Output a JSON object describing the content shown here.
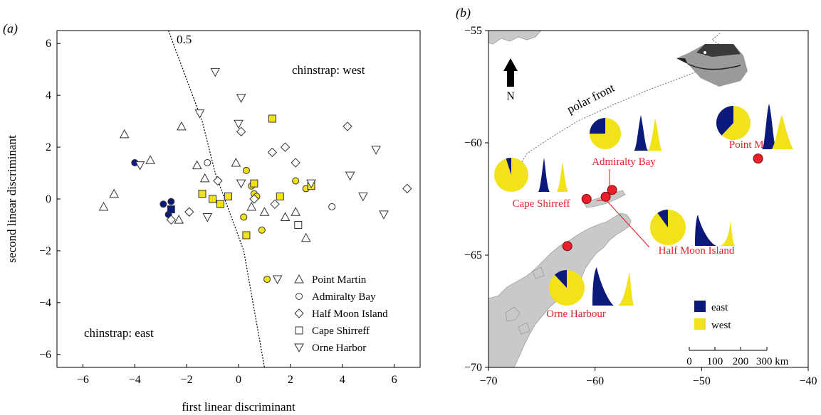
{
  "chart_data": [
    {
      "type": "scatter",
      "panel_label": "(a)",
      "xlabel": "first linear discriminant",
      "ylabel": "second linear discriminant",
      "xlim": [
        -7,
        7
      ],
      "ylim": [
        -6.5,
        6.5
      ],
      "xticks": [
        "-6",
        "-4",
        "-2",
        "0",
        "2",
        "4",
        "6"
      ],
      "yticks": [
        "-6",
        "-4",
        "-2",
        "0",
        "2",
        "4",
        "6"
      ],
      "boundary": {
        "label": "0.5",
        "points": [
          [
            -2.7,
            6.5
          ],
          [
            -1.4,
            3.0
          ],
          [
            -0.9,
            1.0
          ],
          [
            0.2,
            -2.0
          ],
          [
            1.0,
            -6.5
          ]
        ]
      },
      "annotations": {
        "west": "chinstrap: west",
        "east": "chinstrap: east"
      },
      "legend": {
        "position": "bottom-right",
        "entries": [
          {
            "label": "Point Martin",
            "marker": "triangle-up"
          },
          {
            "label": "Admiralty Bay",
            "marker": "circle"
          },
          {
            "label": "Half Moon Island",
            "marker": "diamond"
          },
          {
            "label": "Cape Shirreff",
            "marker": "square"
          },
          {
            "label": "Orne Harbor",
            "marker": "triangle-down"
          }
        ]
      },
      "colors": {
        "east": "#0b1a7a",
        "west": "#f2e21a",
        "open": "#ffffff"
      },
      "series": [
        {
          "name": "Point Martin",
          "marker": "triangle-up",
          "points": [
            {
              "x": -5.2,
              "y": -0.3,
              "c": "open"
            },
            {
              "x": -4.4,
              "y": 2.5,
              "c": "open"
            },
            {
              "x": -3.4,
              "y": 1.5,
              "c": "open"
            },
            {
              "x": -4.8,
              "y": 0.2,
              "c": "open"
            },
            {
              "x": -2.2,
              "y": 2.8,
              "c": "open"
            },
            {
              "x": -1.6,
              "y": 1.3,
              "c": "open"
            },
            {
              "x": -1.3,
              "y": 0.8,
              "c": "open"
            },
            {
              "x": -2.3,
              "y": -0.8,
              "c": "open"
            },
            {
              "x": -0.1,
              "y": 1.4,
              "c": "open"
            },
            {
              "x": 1.0,
              "y": -0.5,
              "c": "open"
            },
            {
              "x": 2.2,
              "y": -0.5,
              "c": "open"
            },
            {
              "x": 2.6,
              "y": -1.5,
              "c": "open"
            },
            {
              "x": 1.8,
              "y": -0.7,
              "c": "open"
            },
            {
              "x": 0.5,
              "y": -0.3,
              "c": "open"
            }
          ]
        },
        {
          "name": "Admiralty Bay",
          "marker": "circle",
          "points": [
            {
              "x": -4.0,
              "y": 1.4,
              "c": "east"
            },
            {
              "x": -2.9,
              "y": -0.2,
              "c": "east"
            },
            {
              "x": -2.6,
              "y": -0.1,
              "c": "east"
            },
            {
              "x": -2.7,
              "y": -0.6,
              "c": "east"
            },
            {
              "x": 0.3,
              "y": 1.1,
              "c": "west"
            },
            {
              "x": 0.6,
              "y": 0.2,
              "c": "west"
            },
            {
              "x": 0.2,
              "y": -0.7,
              "c": "west"
            },
            {
              "x": 0.9,
              "y": -1.2,
              "c": "west"
            },
            {
              "x": 0.5,
              "y": 0.5,
              "c": "west"
            },
            {
              "x": 1.1,
              "y": -3.1,
              "c": "west"
            },
            {
              "x": 2.2,
              "y": 0.7,
              "c": "west"
            },
            {
              "x": 2.6,
              "y": 0.4,
              "c": "west"
            },
            {
              "x": 0.7,
              "y": 0.1,
              "c": "west"
            },
            {
              "x": -1.2,
              "y": 1.4,
              "c": "open"
            },
            {
              "x": 3.6,
              "y": -0.3,
              "c": "open"
            }
          ]
        },
        {
          "name": "Half Moon Island",
          "marker": "diamond",
          "points": [
            {
              "x": -2.6,
              "y": -0.8,
              "c": "open"
            },
            {
              "x": -1.9,
              "y": -0.5,
              "c": "open"
            },
            {
              "x": -0.8,
              "y": 0.7,
              "c": "open"
            },
            {
              "x": 0.1,
              "y": 2.6,
              "c": "open"
            },
            {
              "x": 1.3,
              "y": 1.8,
              "c": "open"
            },
            {
              "x": 1.8,
              "y": 2.0,
              "c": "open"
            },
            {
              "x": 4.2,
              "y": 2.8,
              "c": "open"
            },
            {
              "x": 6.5,
              "y": 0.4,
              "c": "open"
            },
            {
              "x": 0.6,
              "y": 0.0,
              "c": "open"
            },
            {
              "x": 1.4,
              "y": -0.2,
              "c": "open"
            },
            {
              "x": 2.2,
              "y": 1.4,
              "c": "open"
            }
          ]
        },
        {
          "name": "Cape Shirreff",
          "marker": "square",
          "points": [
            {
              "x": -2.6,
              "y": -0.4,
              "c": "east"
            },
            {
              "x": 1.3,
              "y": 3.1,
              "c": "west"
            },
            {
              "x": -1.4,
              "y": 0.2,
              "c": "west"
            },
            {
              "x": -1.0,
              "y": 0.0,
              "c": "west"
            },
            {
              "x": -0.4,
              "y": 0.1,
              "c": "west"
            },
            {
              "x": 0.6,
              "y": 0.6,
              "c": "west"
            },
            {
              "x": 0.3,
              "y": -1.4,
              "c": "west"
            },
            {
              "x": 1.6,
              "y": 0.1,
              "c": "west"
            },
            {
              "x": 2.8,
              "y": 0.5,
              "c": "west"
            },
            {
              "x": -0.7,
              "y": -0.2,
              "c": "west"
            },
            {
              "x": 2.3,
              "y": -1.0,
              "c": "open"
            }
          ]
        },
        {
          "name": "Orne Harbor",
          "marker": "triangle-down",
          "points": [
            {
              "x": -3.8,
              "y": 1.3,
              "c": "open"
            },
            {
              "x": -0.9,
              "y": 4.9,
              "c": "open"
            },
            {
              "x": 0.1,
              "y": 3.9,
              "c": "open"
            },
            {
              "x": -1.5,
              "y": 3.3,
              "c": "open"
            },
            {
              "x": 0.0,
              "y": 2.9,
              "c": "open"
            },
            {
              "x": 5.3,
              "y": 1.9,
              "c": "open"
            },
            {
              "x": 4.3,
              "y": 0.9,
              "c": "open"
            },
            {
              "x": 4.8,
              "y": 0.1,
              "c": "open"
            },
            {
              "x": 5.6,
              "y": -0.6,
              "c": "open"
            },
            {
              "x": 1.5,
              "y": -3.1,
              "c": "open"
            },
            {
              "x": 2.8,
              "y": 0.6,
              "c": "open"
            },
            {
              "x": 0.1,
              "y": 0.6,
              "c": "open"
            },
            {
              "x": -1.2,
              "y": -0.7,
              "c": "open"
            }
          ]
        }
      ]
    },
    {
      "type": "map",
      "panel_label": "(b)",
      "xlim": [
        -70,
        -40
      ],
      "ylim": [
        -70,
        -55
      ],
      "xticks": [
        "−70",
        "−60",
        "−50",
        "−40"
      ],
      "yticks": [
        "−55",
        "−60",
        "−65",
        "−70"
      ],
      "front_label": "polar front",
      "north_label": "N",
      "scale_bar": {
        "labels": [
          "0",
          "100",
          "200",
          "300 km"
        ]
      },
      "legend": {
        "position": "bottom-right",
        "entries": [
          {
            "label": "east",
            "color": "#0b1a7a"
          },
          {
            "label": "west",
            "color": "#f2e21a"
          }
        ]
      },
      "sites": [
        {
          "name": "Point Martin",
          "lon": -44.7,
          "lat": -60.7,
          "east_fraction": 0.38
        },
        {
          "name": "Admiralty Bay",
          "lon": -58.4,
          "lat": -62.1,
          "east_fraction": 0.25
        },
        {
          "name": "Cape Shirreff",
          "lon": -60.8,
          "lat": -62.5,
          "east_fraction": 0.05
        },
        {
          "name": "Half Moon Island",
          "lon": -59.0,
          "lat": -62.4,
          "east_fraction": 0.1
        },
        {
          "name": "Orne Harbour",
          "lon": -62.6,
          "lat": -64.6,
          "east_fraction": 0.12
        }
      ]
    }
  ]
}
